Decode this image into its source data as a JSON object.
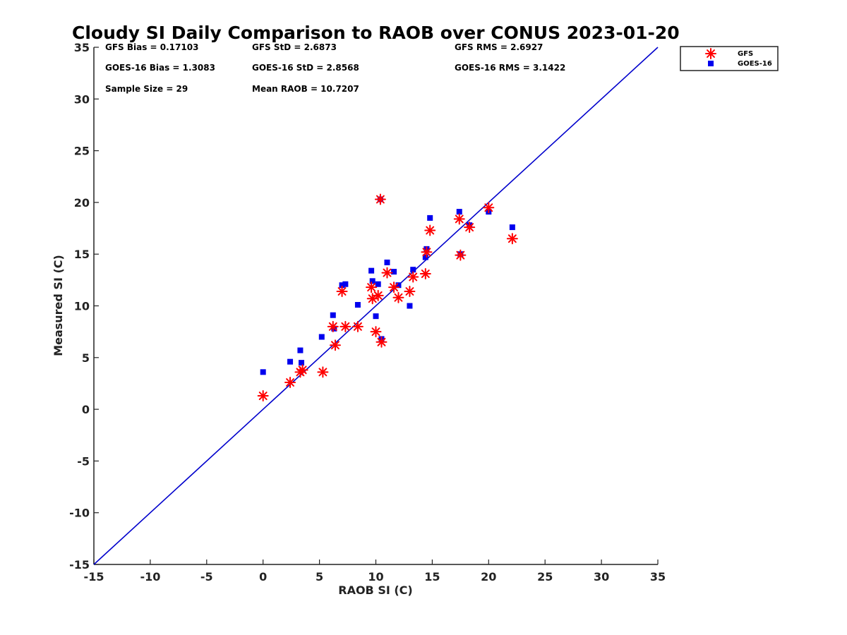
{
  "chart_data": {
    "type": "scatter",
    "title": "Cloudy SI Daily Comparison to RAOB over CONUS 2023-01-20",
    "xlabel": "RAOB SI (C)",
    "ylabel": "Measured SI (C)",
    "xlim": [
      -15,
      35
    ],
    "ylim": [
      -15,
      35
    ],
    "xticks": [
      "-15",
      "-10",
      "-5",
      "0",
      "5",
      "10",
      "15",
      "20",
      "25",
      "30",
      "35"
    ],
    "yticks": [
      "-15",
      "-10",
      "-5",
      "0",
      "5",
      "10",
      "15",
      "20",
      "25",
      "30",
      "35"
    ],
    "grid": false,
    "legend_position": "outside-top-right",
    "stats": [
      "GFS Bias = 0.17103",
      "GFS StD = 2.6873",
      "GFS RMS = 2.6927",
      "GOES-16 Bias = 1.3083",
      "GOES-16 StD = 2.8568",
      "GOES-16 RMS = 3.1422",
      "Sample Size = 29",
      "Mean RAOB = 10.7207"
    ],
    "reference_line": {
      "x": [
        -15,
        35
      ],
      "y": [
        -15,
        35
      ],
      "color": "#0000cc"
    },
    "series": [
      {
        "name": "GFS",
        "marker": "asterisk",
        "color": "#ff0000",
        "x": [
          0.0,
          2.4,
          3.3,
          3.5,
          5.3,
          6.2,
          6.4,
          7.0,
          7.3,
          8.4,
          9.6,
          9.7,
          10.0,
          10.2,
          10.4,
          10.5,
          11.0,
          11.6,
          12.0,
          13.0,
          13.3,
          14.4,
          14.5,
          14.8,
          17.4,
          17.5,
          18.3,
          20.0,
          22.1
        ],
        "y": [
          1.3,
          2.6,
          3.6,
          3.8,
          3.6,
          8.0,
          6.2,
          11.4,
          8.0,
          8.0,
          11.8,
          10.7,
          7.5,
          11.0,
          20.3,
          6.5,
          13.2,
          11.8,
          10.8,
          11.4,
          12.8,
          13.1,
          15.2,
          17.3,
          18.4,
          14.9,
          17.6,
          19.5,
          16.5
        ]
      },
      {
        "name": "GOES-16",
        "marker": "square",
        "color": "#0000ee",
        "x": [
          0.0,
          2.4,
          3.3,
          3.4,
          5.2,
          6.2,
          6.3,
          7.0,
          7.3,
          8.4,
          9.6,
          9.7,
          10.0,
          10.2,
          10.4,
          10.5,
          11.0,
          11.6,
          12.0,
          13.0,
          13.3,
          14.4,
          14.5,
          14.8,
          17.4,
          17.5,
          18.3,
          20.0,
          22.1
        ],
        "y": [
          3.6,
          4.6,
          5.7,
          4.5,
          7.0,
          9.1,
          7.8,
          12.0,
          12.1,
          10.1,
          13.4,
          12.4,
          9.0,
          12.1,
          20.3,
          6.8,
          14.2,
          13.3,
          12.0,
          10.0,
          13.5,
          14.7,
          15.5,
          18.5,
          19.1,
          15.0,
          17.8,
          19.1,
          17.6
        ]
      }
    ]
  }
}
